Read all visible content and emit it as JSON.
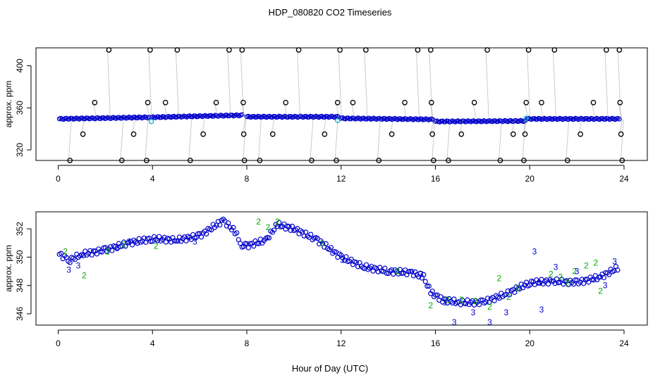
{
  "title": "HDP_080820  CO2 Timeseries",
  "xlabel": "Hour of Day (UTC)",
  "chart_data": [
    {
      "type": "scatter",
      "name": "raw-panel",
      "ylabel": "approx. ppm",
      "xlim": [
        0,
        24
      ],
      "ylim": [
        310,
        417
      ],
      "xticks": [
        "0",
        "4",
        "8",
        "12",
        "16",
        "20",
        "24"
      ],
      "xtick_values": [
        0,
        4,
        8,
        12,
        16,
        20,
        24
      ],
      "yticks": [
        "320",
        "360",
        "400"
      ],
      "ytick_values": [
        320,
        360,
        400
      ],
      "colors": {
        "base": "#0000cc",
        "highlight": "#00aacc",
        "outlier": "#000000",
        "connector": "#999999"
      },
      "base_segments": [
        {
          "x0": 0.05,
          "x1": 3.85,
          "y0": 349.5,
          "y1": 351.0
        },
        {
          "x0": 3.95,
          "x1": 7.8,
          "y0": 351.0,
          "y1": 353.0
        },
        {
          "x0": 8.0,
          "x1": 11.9,
          "y0": 351.5,
          "y1": 351.5
        },
        {
          "x0": 12.0,
          "x1": 15.9,
          "y0": 350.0,
          "y1": 349.0
        },
        {
          "x0": 16.0,
          "x1": 19.8,
          "y0": 347.0,
          "y1": 347.5
        },
        {
          "x0": 19.9,
          "x1": 23.8,
          "y0": 349.5,
          "y1": 349.5
        }
      ],
      "highlights": [
        {
          "x": 3.95,
          "y": 347
        },
        {
          "x": 11.85,
          "y": 348
        },
        {
          "x": 19.85,
          "y": 350
        }
      ],
      "outliers": [
        {
          "x": 0.5,
          "y": 310
        },
        {
          "x": 1.05,
          "y": 335
        },
        {
          "x": 1.55,
          "y": 365
        },
        {
          "x": 2.15,
          "y": 415
        },
        {
          "x": 2.7,
          "y": 310
        },
        {
          "x": 3.2,
          "y": 335
        },
        {
          "x": 3.75,
          "y": 310
        },
        {
          "x": 3.8,
          "y": 365
        },
        {
          "x": 3.9,
          "y": 415
        },
        {
          "x": 4.55,
          "y": 365
        },
        {
          "x": 5.05,
          "y": 415
        },
        {
          "x": 5.6,
          "y": 310
        },
        {
          "x": 6.15,
          "y": 335
        },
        {
          "x": 6.7,
          "y": 365
        },
        {
          "x": 7.25,
          "y": 415
        },
        {
          "x": 7.8,
          "y": 415
        },
        {
          "x": 7.85,
          "y": 365
        },
        {
          "x": 7.87,
          "y": 335
        },
        {
          "x": 7.9,
          "y": 310
        },
        {
          "x": 8.55,
          "y": 310
        },
        {
          "x": 9.1,
          "y": 335
        },
        {
          "x": 9.65,
          "y": 365
        },
        {
          "x": 10.2,
          "y": 415
        },
        {
          "x": 10.75,
          "y": 310
        },
        {
          "x": 11.3,
          "y": 335
        },
        {
          "x": 11.8,
          "y": 310
        },
        {
          "x": 11.85,
          "y": 365
        },
        {
          "x": 11.95,
          "y": 415
        },
        {
          "x": 12.5,
          "y": 365
        },
        {
          "x": 13.05,
          "y": 415
        },
        {
          "x": 13.6,
          "y": 310
        },
        {
          "x": 14.15,
          "y": 335
        },
        {
          "x": 14.7,
          "y": 365
        },
        {
          "x": 15.25,
          "y": 415
        },
        {
          "x": 15.8,
          "y": 415
        },
        {
          "x": 15.83,
          "y": 365
        },
        {
          "x": 15.87,
          "y": 335
        },
        {
          "x": 15.92,
          "y": 310
        },
        {
          "x": 16.55,
          "y": 310
        },
        {
          "x": 17.1,
          "y": 335
        },
        {
          "x": 17.65,
          "y": 365
        },
        {
          "x": 18.2,
          "y": 415
        },
        {
          "x": 18.75,
          "y": 310
        },
        {
          "x": 19.3,
          "y": 335
        },
        {
          "x": 19.75,
          "y": 310
        },
        {
          "x": 19.8,
          "y": 335
        },
        {
          "x": 19.85,
          "y": 365
        },
        {
          "x": 19.95,
          "y": 415
        },
        {
          "x": 20.5,
          "y": 365
        },
        {
          "x": 21.05,
          "y": 415
        },
        {
          "x": 21.6,
          "y": 310
        },
        {
          "x": 22.15,
          "y": 335
        },
        {
          "x": 22.7,
          "y": 365
        },
        {
          "x": 23.25,
          "y": 415
        },
        {
          "x": 23.8,
          "y": 415
        },
        {
          "x": 23.83,
          "y": 365
        },
        {
          "x": 23.87,
          "y": 335
        },
        {
          "x": 23.92,
          "y": 310
        }
      ]
    },
    {
      "type": "scatter",
      "name": "zoom-panel",
      "ylabel": "approx. ppm",
      "xlim": [
        0,
        24
      ],
      "ylim": [
        345.2,
        353.2
      ],
      "xticks": [
        "0",
        "4",
        "8",
        "12",
        "16",
        "20",
        "24"
      ],
      "xtick_values": [
        0,
        4,
        8,
        12,
        16,
        20,
        24
      ],
      "yticks": [
        "346",
        "348",
        "350",
        "352"
      ],
      "ytick_values": [
        346,
        348,
        350,
        352
      ],
      "colors": {
        "base": "#0000cc",
        "label2": "#00aa00",
        "label3": "#0000cc"
      },
      "trend": [
        {
          "x": 0.05,
          "y": 350.2
        },
        {
          "x": 0.5,
          "y": 349.8
        },
        {
          "x": 1.0,
          "y": 350.2
        },
        {
          "x": 2.0,
          "y": 350.5
        },
        {
          "x": 3.0,
          "y": 351.0
        },
        {
          "x": 4.0,
          "y": 351.3
        },
        {
          "x": 5.0,
          "y": 351.2
        },
        {
          "x": 6.0,
          "y": 351.5
        },
        {
          "x": 7.0,
          "y": 352.6
        },
        {
          "x": 7.5,
          "y": 351.8
        },
        {
          "x": 7.8,
          "y": 350.8
        },
        {
          "x": 8.0,
          "y": 350.8
        },
        {
          "x": 8.8,
          "y": 351.2
        },
        {
          "x": 9.3,
          "y": 352.3
        },
        {
          "x": 10.0,
          "y": 352.0
        },
        {
          "x": 11.0,
          "y": 351.2
        },
        {
          "x": 12.0,
          "y": 350.0
        },
        {
          "x": 13.0,
          "y": 349.3
        },
        {
          "x": 14.0,
          "y": 349.0
        },
        {
          "x": 15.0,
          "y": 348.9
        },
        {
          "x": 15.5,
          "y": 348.6
        },
        {
          "x": 15.8,
          "y": 347.5
        },
        {
          "x": 16.3,
          "y": 347.0
        },
        {
          "x": 17.0,
          "y": 346.8
        },
        {
          "x": 18.0,
          "y": 346.8
        },
        {
          "x": 19.0,
          "y": 347.4
        },
        {
          "x": 20.0,
          "y": 348.2
        },
        {
          "x": 21.0,
          "y": 348.3
        },
        {
          "x": 22.0,
          "y": 348.2
        },
        {
          "x": 23.0,
          "y": 348.6
        },
        {
          "x": 23.8,
          "y": 349.3
        }
      ],
      "labels2": [
        {
          "x": 0.3,
          "y": 350.4
        },
        {
          "x": 1.1,
          "y": 348.7
        },
        {
          "x": 2.1,
          "y": 350.4
        },
        {
          "x": 2.8,
          "y": 350.9
        },
        {
          "x": 4.15,
          "y": 350.8
        },
        {
          "x": 8.5,
          "y": 352.5
        },
        {
          "x": 8.9,
          "y": 352.1
        },
        {
          "x": 9.3,
          "y": 352.5
        },
        {
          "x": 11.2,
          "y": 351.0
        },
        {
          "x": 14.4,
          "y": 349.0
        },
        {
          "x": 15.8,
          "y": 346.6
        },
        {
          "x": 16.5,
          "y": 347.0
        },
        {
          "x": 17.1,
          "y": 347.0
        },
        {
          "x": 17.7,
          "y": 346.9
        },
        {
          "x": 18.3,
          "y": 346.5
        },
        {
          "x": 18.7,
          "y": 348.5
        },
        {
          "x": 19.1,
          "y": 347.2
        },
        {
          "x": 19.5,
          "y": 347.8
        },
        {
          "x": 20.9,
          "y": 348.8
        },
        {
          "x": 21.3,
          "y": 348.6
        },
        {
          "x": 21.6,
          "y": 348.2
        },
        {
          "x": 21.9,
          "y": 349.0
        },
        {
          "x": 22.4,
          "y": 349.4
        },
        {
          "x": 22.8,
          "y": 349.6
        },
        {
          "x": 23.0,
          "y": 347.6
        }
      ],
      "labels3": [
        {
          "x": 0.45,
          "y": 349.1
        },
        {
          "x": 0.85,
          "y": 349.4
        },
        {
          "x": 2.5,
          "y": 350.7
        },
        {
          "x": 3.0,
          "y": 351.1
        },
        {
          "x": 5.8,
          "y": 351.1
        },
        {
          "x": 12.05,
          "y": 349.8
        },
        {
          "x": 15.4,
          "y": 348.8
        },
        {
          "x": 16.4,
          "y": 346.8
        },
        {
          "x": 16.8,
          "y": 345.4
        },
        {
          "x": 17.6,
          "y": 346.1
        },
        {
          "x": 18.3,
          "y": 345.4
        },
        {
          "x": 19.0,
          "y": 346.1
        },
        {
          "x": 20.2,
          "y": 350.4
        },
        {
          "x": 20.4,
          "y": 348.2
        },
        {
          "x": 20.5,
          "y": 346.3
        },
        {
          "x": 21.1,
          "y": 349.3
        },
        {
          "x": 22.0,
          "y": 349.0
        },
        {
          "x": 23.2,
          "y": 348.0
        },
        {
          "x": 23.6,
          "y": 349.7
        }
      ]
    }
  ]
}
